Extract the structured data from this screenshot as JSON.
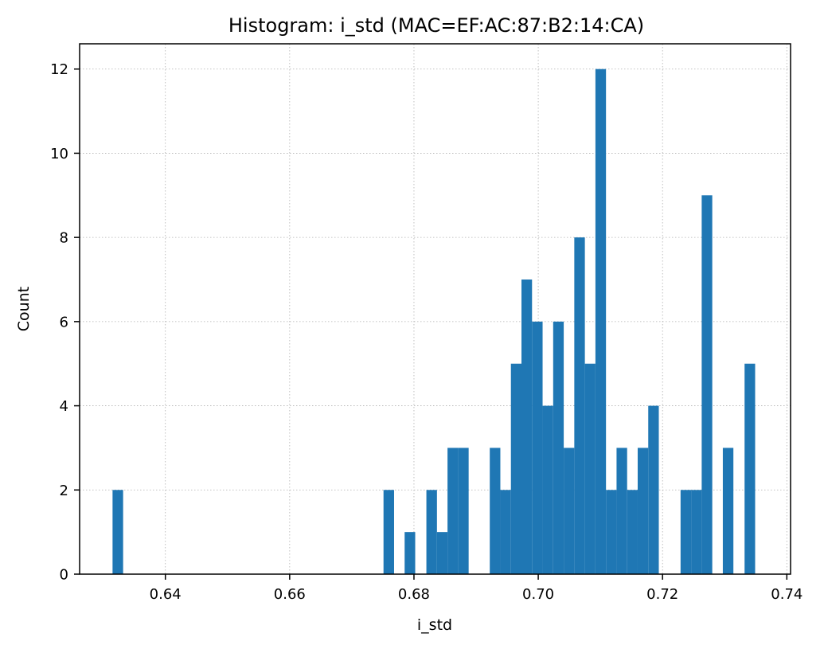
{
  "chart_data": {
    "type": "bar",
    "title": "Histogram: i_std (MAC=EF:AC:87:B2:14:CA)",
    "xlabel": "i_std",
    "ylabel": "Count",
    "xlim": [
      0.6262,
      0.7406
    ],
    "ylim": [
      0,
      12.6
    ],
    "grid": true,
    "bin_width": 0.0017,
    "x_ticks": [
      0.64,
      0.66,
      0.68,
      0.7,
      0.72,
      0.74
    ],
    "x_tick_labels": [
      "0.64",
      "0.66",
      "0.68",
      "0.70",
      "0.72",
      "0.74"
    ],
    "y_ticks": [
      0,
      2,
      4,
      6,
      8,
      10,
      12
    ],
    "y_tick_labels": [
      "0",
      "2",
      "4",
      "6",
      "8",
      "10",
      "12"
    ],
    "bins": [
      {
        "x": 0.6315,
        "value": 2
      },
      {
        "x": 0.6751,
        "value": 2
      },
      {
        "x": 0.6785,
        "value": 1
      },
      {
        "x": 0.682,
        "value": 2
      },
      {
        "x": 0.6837,
        "value": 1
      },
      {
        "x": 0.6854,
        "value": 3
      },
      {
        "x": 0.6871,
        "value": 3
      },
      {
        "x": 0.6922,
        "value": 3
      },
      {
        "x": 0.6939,
        "value": 2
      },
      {
        "x": 0.6956,
        "value": 5
      },
      {
        "x": 0.6973,
        "value": 7
      },
      {
        "x": 0.699,
        "value": 6
      },
      {
        "x": 0.7007,
        "value": 4
      },
      {
        "x": 0.7024,
        "value": 6
      },
      {
        "x": 0.7041,
        "value": 3
      },
      {
        "x": 0.7058,
        "value": 8
      },
      {
        "x": 0.7075,
        "value": 5
      },
      {
        "x": 0.7092,
        "value": 12
      },
      {
        "x": 0.7109,
        "value": 2
      },
      {
        "x": 0.7126,
        "value": 3
      },
      {
        "x": 0.7143,
        "value": 2
      },
      {
        "x": 0.716,
        "value": 3
      },
      {
        "x": 0.7177,
        "value": 4
      },
      {
        "x": 0.7229,
        "value": 2
      },
      {
        "x": 0.7246,
        "value": 2
      },
      {
        "x": 0.7263,
        "value": 9
      },
      {
        "x": 0.7297,
        "value": 3
      },
      {
        "x": 0.7332,
        "value": 5
      }
    ],
    "bar_color": "#1f77b4"
  }
}
